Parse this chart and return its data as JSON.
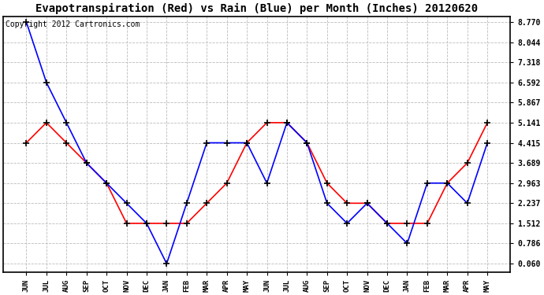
{
  "title": "Evapotranspiration (Red) vs Rain (Blue) per Month (Inches) 20120620",
  "copyright": "Copyright 2012 Cartronics.com",
  "x_labels": [
    "JUN",
    "JUL",
    "AUG",
    "SEP",
    "OCT",
    "NOV",
    "DEC",
    "JAN",
    "FEB",
    "MAR",
    "APR",
    "MAY",
    "JUN",
    "JUL",
    "AUG",
    "SEP",
    "OCT",
    "NOV",
    "DEC",
    "JAN",
    "FEB",
    "MAR",
    "APR",
    "MAY"
  ],
  "y_ticks": [
    0.06,
    0.786,
    1.512,
    2.237,
    2.963,
    3.689,
    4.415,
    5.141,
    5.867,
    6.592,
    7.318,
    8.044,
    8.77
  ],
  "ylim_min": 0.06,
  "ylim_max": 8.77,
  "red_data": [
    4.415,
    5.141,
    4.415,
    3.689,
    2.963,
    1.512,
    1.512,
    1.512,
    1.512,
    2.237,
    2.963,
    4.415,
    5.141,
    5.141,
    4.415,
    2.963,
    2.237,
    2.237,
    1.512,
    1.512,
    1.512,
    2.963,
    3.689,
    5.141
  ],
  "blue_data": [
    8.77,
    6.592,
    5.141,
    3.689,
    2.963,
    2.237,
    1.512,
    0.06,
    2.237,
    4.415,
    4.415,
    4.415,
    2.963,
    5.141,
    4.415,
    2.237,
    1.512,
    2.237,
    1.512,
    0.786,
    2.963,
    2.963,
    2.237,
    4.415
  ],
  "red_color": "#ff0000",
  "blue_color": "#0000ff",
  "bg_color": "#ffffff",
  "grid_color": "#bbbbbb",
  "title_fontsize": 10,
  "copyright_fontsize": 7,
  "marker": "+",
  "markersize": 6,
  "linewidth": 1.2
}
